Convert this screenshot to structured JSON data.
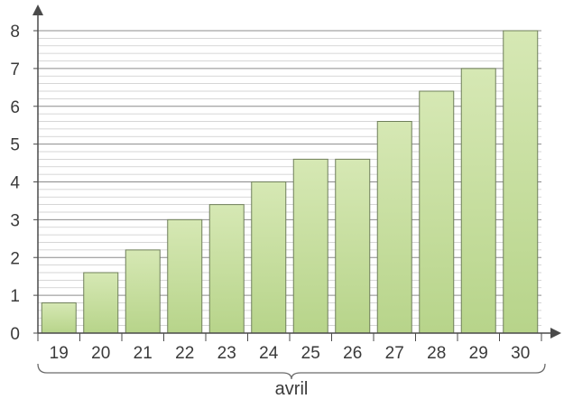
{
  "chart_data": {
    "type": "bar",
    "categories": [
      "19",
      "20",
      "21",
      "22",
      "23",
      "24",
      "25",
      "26",
      "27",
      "28",
      "29",
      "30"
    ],
    "values": [
      0.8,
      1.6,
      2.2,
      3.0,
      3.4,
      4.0,
      4.6,
      4.6,
      5.6,
      6.4,
      7.0,
      8.0
    ],
    "xlabel": "avril",
    "ylabel": "",
    "ylim": [
      0,
      8
    ],
    "yticks": [
      "0",
      "1",
      "2",
      "3",
      "4",
      "5",
      "6",
      "7",
      "8"
    ],
    "grid": true,
    "minor_grid_step": 0.2,
    "colors": {
      "bar_fill": "#c8dea0",
      "bar_stroke": "#6f7f5a",
      "grid_major": "#8c8c8c",
      "grid_minor": "#c9c9c9",
      "axis": "#4a4a4a"
    }
  }
}
